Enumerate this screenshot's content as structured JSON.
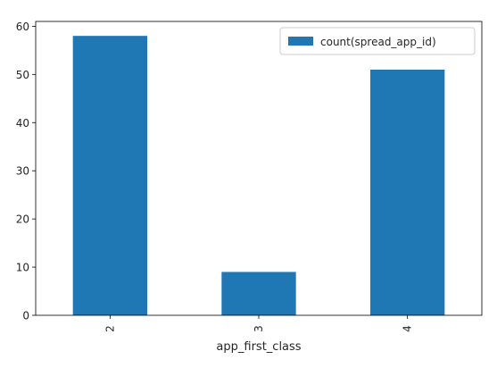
{
  "chart_data": {
    "type": "bar",
    "categories": [
      "2",
      "3",
      "4"
    ],
    "series": [
      {
        "name": "count(spread_app_id)",
        "values": [
          58,
          9,
          51
        ],
        "color": "#1f77b4"
      }
    ],
    "xlabel": "app_first_class",
    "ylabel": "",
    "ylim": [
      0,
      61
    ],
    "yticks": [
      0,
      10,
      20,
      30,
      40,
      50,
      60
    ],
    "grid": false,
    "legend": "top-right",
    "xtick_rotation": "vertical"
  }
}
